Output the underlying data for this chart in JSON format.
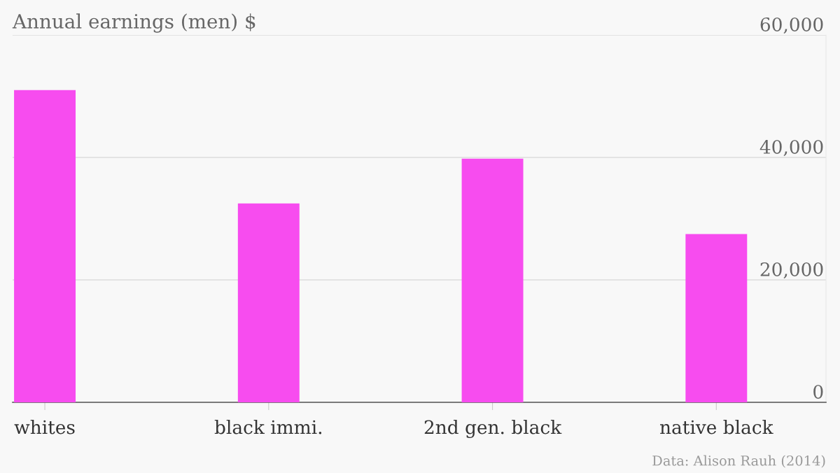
{
  "chart_data": {
    "type": "bar",
    "title": "Annual earnings (men) $",
    "categories": [
      "whites",
      "black immi.",
      "2nd gen. black",
      "native black"
    ],
    "values": [
      51000,
      32500,
      39800,
      27500
    ],
    "color": "#f74cef",
    "ylim": [
      0,
      60000
    ],
    "yticks": [
      {
        "value": 0,
        "label": "0"
      },
      {
        "value": 20000,
        "label": "20,000"
      },
      {
        "value": 40000,
        "label": "40,000"
      },
      {
        "value": 60000,
        "label": "60,000"
      }
    ],
    "grid": "y",
    "annotations": [
      "Data: Alison Rauh (2014)"
    ]
  }
}
